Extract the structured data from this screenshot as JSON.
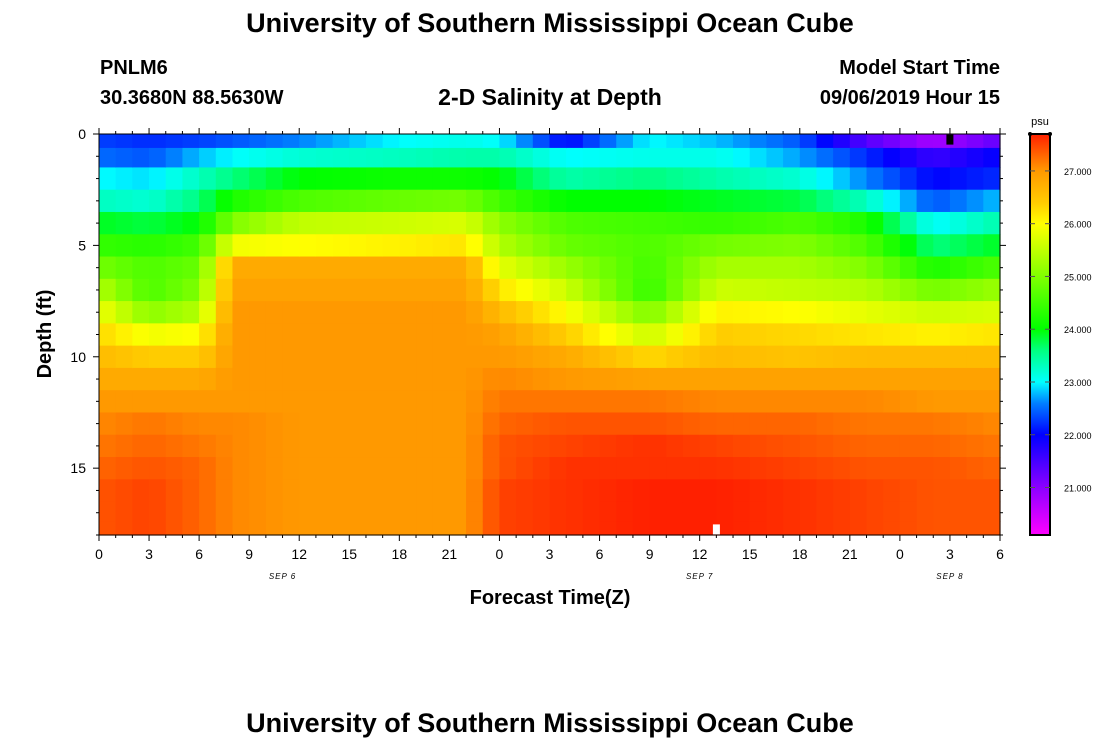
{
  "header": {
    "title": "University of Southern Mississippi Ocean Cube",
    "station_id": "PNLM6",
    "station_coords": "30.3680N 88.5630W",
    "chart_title": "2-D Salinity at Depth",
    "start_label": "Model Start Time",
    "start_value": "09/06/2019 Hour 15"
  },
  "footer": {
    "title": "University of Southern Mississippi Ocean Cube"
  },
  "chart_data": {
    "type": "heatmap",
    "title": "2-D Salinity at Depth",
    "xlabel": "Forecast Time(Z)",
    "ylabel": "Depth (ft)",
    "x_range_hours": [
      0,
      54
    ],
    "x_tick_hours": [
      0,
      3,
      6,
      9,
      12,
      15,
      18,
      21,
      24,
      27,
      30,
      33,
      36,
      39,
      42,
      45,
      48,
      51,
      54
    ],
    "x_tick_labels": [
      "0",
      "3",
      "6",
      "9",
      "12",
      "15",
      "18",
      "21",
      "0",
      "3",
      "6",
      "9",
      "12",
      "15",
      "18",
      "21",
      "0",
      "3",
      "6"
    ],
    "date_labels": [
      {
        "hour": 11,
        "text": "SEP 6"
      },
      {
        "hour": 36,
        "text": "SEP 7"
      },
      {
        "hour": 51,
        "text": "SEP 8"
      }
    ],
    "ylim": [
      0,
      18
    ],
    "y_ticks": [
      0,
      5,
      10,
      15
    ],
    "y_tick_labels": [
      "0",
      "5",
      "10",
      "15"
    ],
    "colorbar": {
      "unit": "psu",
      "min": 20.1,
      "max": 27.7,
      "ticks": [
        21.0,
        22.0,
        23.0,
        24.0,
        25.0,
        26.0,
        27.0
      ],
      "tick_labels": [
        "21.000",
        "22.000",
        "23.000",
        "24.000",
        "25.000",
        "26.000",
        "27.000"
      ],
      "stops": [
        {
          "v": 20.1,
          "c": "#ff00ff"
        },
        {
          "v": 21.0,
          "c": "#8c00ff"
        },
        {
          "v": 22.0,
          "c": "#0000ff"
        },
        {
          "v": 22.6,
          "c": "#0080ff"
        },
        {
          "v": 23.0,
          "c": "#00ffff"
        },
        {
          "v": 23.6,
          "c": "#00ff80"
        },
        {
          "v": 24.0,
          "c": "#00ff00"
        },
        {
          "v": 25.0,
          "c": "#80ff00"
        },
        {
          "v": 26.0,
          "c": "#ffff00"
        },
        {
          "v": 26.4,
          "c": "#ffcc00"
        },
        {
          "v": 27.0,
          "c": "#ff9900"
        },
        {
          "v": 27.7,
          "c": "#ff2000"
        }
      ]
    },
    "depth_bins_ft": [
      0.25,
      1,
      2,
      3,
      4,
      5,
      6,
      7,
      8,
      9,
      10,
      11,
      12,
      13,
      14,
      15,
      16,
      17,
      17.75
    ],
    "salinity_profiles": [
      {
        "hour": 0,
        "values": [
          22.3,
          22.5,
          23.0,
          23.3,
          23.9,
          24.4,
          24.9,
          25.4,
          25.9,
          26.3,
          26.6,
          26.8,
          27.0,
          27.1,
          27.2,
          27.3,
          27.4,
          27.4,
          27.4
        ]
      },
      {
        "hour": 3,
        "values": [
          22.2,
          22.4,
          22.9,
          23.2,
          23.8,
          24.3,
          24.6,
          24.6,
          25.1,
          25.9,
          26.4,
          26.8,
          27.0,
          27.2,
          27.3,
          27.4,
          27.5,
          27.5,
          27.5
        ]
      },
      {
        "hour": 6,
        "values": [
          22.3,
          22.8,
          23.3,
          23.6,
          24.0,
          24.5,
          24.8,
          25.0,
          25.4,
          26.0,
          26.4,
          26.8,
          27.0,
          27.1,
          27.2,
          27.3,
          27.3,
          27.3,
          27.3
        ]
      },
      {
        "hour": 8,
        "values": [
          22.4,
          23.0,
          23.6,
          24.2,
          25.0,
          25.9,
          26.8,
          26.9,
          27.0,
          27.0,
          27.0,
          27.0,
          27.0,
          27.1,
          27.1,
          27.1,
          27.1,
          27.1,
          27.1
        ]
      },
      {
        "hour": 12,
        "values": [
          22.6,
          23.2,
          24.0,
          24.6,
          25.5,
          26.0,
          26.8,
          26.9,
          27.0,
          27.0,
          27.0,
          27.0,
          27.0,
          27.0,
          27.0,
          27.0,
          27.0,
          27.0,
          27.0
        ]
      },
      {
        "hour": 18,
        "values": [
          23.0,
          23.3,
          24.1,
          24.8,
          25.6,
          26.1,
          26.8,
          26.9,
          27.0,
          27.0,
          27.0,
          27.0,
          27.0,
          27.0,
          27.0,
          27.0,
          27.0,
          27.0,
          27.0
        ]
      },
      {
        "hour": 22,
        "values": [
          23.1,
          23.4,
          24.1,
          24.9,
          25.7,
          26.2,
          26.8,
          26.9,
          27.0,
          27.0,
          27.0,
          27.0,
          27.0,
          27.0,
          27.0,
          27.0,
          27.0,
          27.0,
          27.0
        ]
      },
      {
        "hour": 24,
        "values": [
          23.0,
          23.4,
          24.0,
          24.5,
          25.1,
          25.4,
          25.8,
          26.2,
          26.6,
          26.9,
          27.0,
          27.1,
          27.2,
          27.3,
          27.4,
          27.4,
          27.5,
          27.5,
          27.5
        ]
      },
      {
        "hour": 28,
        "values": [
          22.0,
          23.0,
          23.4,
          24.0,
          24.6,
          24.8,
          25.2,
          25.6,
          26.0,
          26.4,
          26.8,
          27.0,
          27.2,
          27.4,
          27.5,
          27.6,
          27.6,
          27.6,
          27.6
        ]
      },
      {
        "hour": 33,
        "values": [
          23.0,
          23.1,
          23.6,
          24.0,
          24.5,
          24.6,
          24.5,
          24.4,
          25.0,
          25.6,
          26.3,
          26.9,
          27.2,
          27.4,
          27.6,
          27.6,
          27.7,
          27.7,
          27.7
        ]
      },
      {
        "hour": 37,
        "values": [
          22.8,
          23.1,
          23.4,
          23.9,
          24.4,
          24.9,
          25.3,
          25.6,
          26.1,
          26.4,
          26.6,
          26.9,
          27.1,
          27.3,
          27.5,
          27.6,
          27.7,
          27.7,
          27.7
        ]
      },
      {
        "hour": 42,
        "values": [
          22.4,
          22.7,
          23.2,
          23.8,
          24.6,
          25.0,
          25.3,
          25.5,
          26.0,
          26.3,
          26.5,
          26.9,
          27.1,
          27.3,
          27.4,
          27.5,
          27.6,
          27.6,
          27.6
        ]
      },
      {
        "hour": 46,
        "values": [
          21.4,
          22.2,
          22.6,
          23.3,
          24.2,
          24.6,
          25.0,
          25.4,
          25.8,
          26.2,
          26.6,
          26.9,
          27.1,
          27.2,
          27.3,
          27.4,
          27.5,
          27.5,
          27.5
        ]
      },
      {
        "hour": 50,
        "values": [
          20.8,
          21.6,
          22.0,
          22.4,
          23.0,
          23.6,
          24.2,
          24.9,
          25.6,
          26.1,
          26.6,
          26.9,
          27.0,
          27.2,
          27.3,
          27.4,
          27.4,
          27.4,
          27.4
        ]
      },
      {
        "hour": 54,
        "values": [
          21.3,
          22.0,
          22.2,
          22.8,
          23.4,
          23.9,
          24.6,
          25.2,
          25.7,
          26.2,
          26.6,
          26.9,
          27.0,
          27.1,
          27.2,
          27.3,
          27.4,
          27.4,
          27.4
        ]
      }
    ],
    "markers": [
      {
        "hour": 51.0,
        "depth_ft": 0.25,
        "color": "#000000",
        "label": "top marker"
      },
      {
        "hour": 37.0,
        "depth_ft": 17.75,
        "color": "#ffffff",
        "label": "bottom marker"
      }
    ]
  }
}
